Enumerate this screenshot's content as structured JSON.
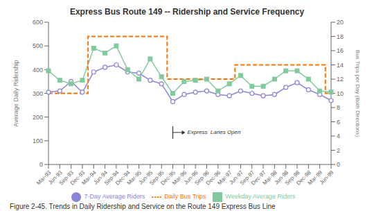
{
  "chart_data": {
    "type": "line",
    "title": "Express Bus Route 149 -- Ridership and Service Frequency",
    "caption": "Figure 2-45. Trends in Daily Ridership and Service on the Route 149 Express Bus Line",
    "ylabel": "Average Daily Ridership",
    "y2label": "Bus Trips per Day (Both Directions)",
    "categories": [
      "Mar-93",
      "Jun-93",
      "Sep-93",
      "Dec-93",
      "Mar-94",
      "Jun-94",
      "Sep-94",
      "Dec-94",
      "Mar-95",
      "Jun-95",
      "Sep-95",
      "Dec-95",
      "Mar-96",
      "Jun-96",
      "Sep-96",
      "Dec-96",
      "Mar-97",
      "Jun-97",
      "Sep-97",
      "Dec-97",
      "Mar-98",
      "Jun-98",
      "Sep-98",
      "Dec-98",
      "Mar-99",
      "Jun-99"
    ],
    "series": [
      {
        "name": "7-Day Average Riders",
        "color": "#8884d8",
        "marker": "circle",
        "line_style": "solid",
        "values": [
          305,
          310,
          350,
          305,
          390,
          410,
          420,
          390,
          385,
          355,
          340,
          265,
          295,
          305,
          310,
          295,
          290,
          310,
          300,
          290,
          295,
          325,
          345,
          315,
          295,
          270
        ]
      },
      {
        "name": "Weekday Average Riders",
        "color": "#82ca9d",
        "marker": "square",
        "line_style": "solid",
        "values": [
          395,
          355,
          340,
          355,
          490,
          470,
          500,
          400,
          360,
          445,
          370,
          300,
          350,
          355,
          360,
          310,
          340,
          375,
          330,
          330,
          360,
          395,
          395,
          360,
          310,
          305
        ]
      },
      {
        "name": "Daily Bus Trips",
        "color": "#ff7300",
        "marker": "none",
        "line_style": "dashed",
        "type": "step",
        "axis": "y2",
        "values": [
          10,
          10,
          10,
          10,
          18,
          18,
          18,
          18,
          18,
          18,
          18,
          12,
          12,
          12,
          12,
          12,
          12,
          14,
          14,
          14,
          14,
          14,
          14,
          14,
          14,
          10
        ]
      }
    ],
    "ylim": [
      0,
      600
    ],
    "yticks": [
      0,
      100,
      200,
      300,
      400,
      500,
      600
    ],
    "y2lim": [
      0,
      20
    ],
    "y2ticks": [
      0,
      2,
      4,
      6,
      8,
      10,
      12,
      14,
      16,
      18,
      20
    ],
    "grid": false,
    "legend": "bottom",
    "annotations": [
      {
        "text": "Express  Lanes Open",
        "x": "Dec-95",
        "y": 135
      }
    ]
  }
}
